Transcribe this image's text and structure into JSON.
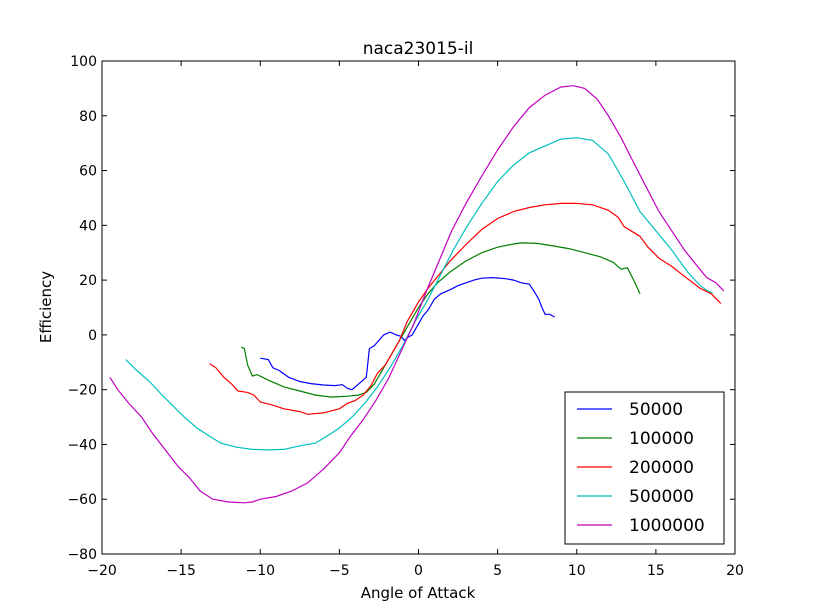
{
  "chart_data": {
    "type": "line",
    "title": "naca23015-il",
    "xlabel": "Angle of Attack",
    "ylabel": "Efficiency",
    "xlim": [
      -20,
      20
    ],
    "ylim": [
      -80,
      100
    ],
    "xticks": [
      -20,
      -15,
      -10,
      -5,
      0,
      5,
      10,
      15,
      20
    ],
    "yticks": [
      -80,
      -60,
      -40,
      -20,
      0,
      20,
      40,
      60,
      80,
      100
    ],
    "xtick_labels": [
      "−20",
      "−15",
      "−10",
      "−5",
      "0",
      "5",
      "10",
      "15",
      "20"
    ],
    "ytick_labels": [
      "−80",
      "−60",
      "−40",
      "−20",
      "0",
      "20",
      "40",
      "60",
      "80",
      "100"
    ],
    "grid": false,
    "legend_position": "lower-right",
    "series": [
      {
        "name": "50000",
        "color": "#0000ff",
        "points": [
          [
            -10,
            -8.5
          ],
          [
            -9.5,
            -9
          ],
          [
            -9.2,
            -12
          ],
          [
            -8.8,
            -13
          ],
          [
            -8.2,
            -15.5
          ],
          [
            -7.5,
            -17
          ],
          [
            -6.8,
            -17.8
          ],
          [
            -6,
            -18.3
          ],
          [
            -5.3,
            -18.5
          ],
          [
            -4.8,
            -18.2
          ],
          [
            -4.5,
            -19.5
          ],
          [
            -4.2,
            -20
          ],
          [
            -3.8,
            -18
          ],
          [
            -3.5,
            -16.5
          ],
          [
            -3.3,
            -15.5
          ],
          [
            -3.1,
            -5
          ],
          [
            -2.8,
            -4
          ],
          [
            -2.5,
            -2
          ],
          [
            -2.2,
            0
          ],
          [
            -1.8,
            1
          ],
          [
            -1.4,
            0
          ],
          [
            -1.1,
            -0.5
          ],
          [
            -0.9,
            -2
          ],
          [
            -0.7,
            -1
          ],
          [
            -0.4,
            0
          ],
          [
            -0.2,
            2
          ],
          [
            0,
            4
          ],
          [
            0.3,
            7
          ],
          [
            0.6,
            9
          ],
          [
            1,
            13
          ],
          [
            1.4,
            15
          ],
          [
            2,
            16.5
          ],
          [
            2.5,
            18
          ],
          [
            3,
            19
          ],
          [
            3.5,
            20
          ],
          [
            4,
            20.7
          ],
          [
            4.7,
            20.9
          ],
          [
            5.5,
            20.5
          ],
          [
            6,
            20
          ],
          [
            6.5,
            19
          ],
          [
            7,
            18.5
          ],
          [
            7.3,
            16
          ],
          [
            7.6,
            13
          ],
          [
            7.8,
            10
          ],
          [
            8,
            7.5
          ],
          [
            8.3,
            7.5
          ],
          [
            8.6,
            6.5
          ]
        ]
      },
      {
        "name": "100000",
        "color": "#008000",
        "points": [
          [
            -11.2,
            -4.5
          ],
          [
            -11,
            -5
          ],
          [
            -10.8,
            -11
          ],
          [
            -10.5,
            -15
          ],
          [
            -10.2,
            -14.5
          ],
          [
            -9.5,
            -16.5
          ],
          [
            -8.5,
            -19
          ],
          [
            -7.5,
            -20.5
          ],
          [
            -6.5,
            -22
          ],
          [
            -5.5,
            -22.7
          ],
          [
            -4.5,
            -22.4
          ],
          [
            -3.8,
            -22
          ],
          [
            -3.3,
            -21
          ],
          [
            -2.8,
            -18
          ],
          [
            -2.3,
            -13
          ],
          [
            -1.8,
            -8
          ],
          [
            -1.2,
            -2
          ],
          [
            -0.6,
            4
          ],
          [
            0,
            10
          ],
          [
            0.6,
            15
          ],
          [
            1.2,
            19
          ],
          [
            2,
            23
          ],
          [
            3,
            27
          ],
          [
            4,
            30
          ],
          [
            5,
            32
          ],
          [
            6,
            33.2
          ],
          [
            6.5,
            33.6
          ],
          [
            7.5,
            33.4
          ],
          [
            8.5,
            32.5
          ],
          [
            9.5,
            31.5
          ],
          [
            10.5,
            30
          ],
          [
            11.5,
            28.5
          ],
          [
            12.3,
            26.5
          ],
          [
            12.8,
            24
          ],
          [
            13.2,
            24.5
          ],
          [
            13.6,
            20
          ],
          [
            14,
            15
          ]
        ]
      },
      {
        "name": "200000",
        "color": "#ff0000",
        "points": [
          [
            -13.2,
            -10.5
          ],
          [
            -12.8,
            -12
          ],
          [
            -12.3,
            -15.5
          ],
          [
            -11.8,
            -18
          ],
          [
            -11.4,
            -20.5
          ],
          [
            -10.8,
            -21
          ],
          [
            -10.4,
            -22
          ],
          [
            -10,
            -24.5
          ],
          [
            -9.3,
            -25.5
          ],
          [
            -8.5,
            -27
          ],
          [
            -7.5,
            -28
          ],
          [
            -7,
            -29
          ],
          [
            -6,
            -28.5
          ],
          [
            -5,
            -27
          ],
          [
            -4.5,
            -25
          ],
          [
            -4,
            -24
          ],
          [
            -3.5,
            -22
          ],
          [
            -3,
            -18.5
          ],
          [
            -2.6,
            -14
          ],
          [
            -2.1,
            -11
          ],
          [
            -1.6,
            -6
          ],
          [
            -1.2,
            -2
          ],
          [
            -0.7,
            5
          ],
          [
            0,
            12
          ],
          [
            0.6,
            17
          ],
          [
            1.3,
            22
          ],
          [
            2,
            27
          ],
          [
            3,
            33
          ],
          [
            4,
            38.5
          ],
          [
            5,
            42.5
          ],
          [
            6,
            45
          ],
          [
            7,
            46.5
          ],
          [
            8,
            47.5
          ],
          [
            9,
            48
          ],
          [
            10,
            48
          ],
          [
            11,
            47.5
          ],
          [
            12,
            45.5
          ],
          [
            12.6,
            43
          ],
          [
            13,
            39.5
          ],
          [
            14,
            36
          ],
          [
            14.5,
            32
          ],
          [
            15.2,
            28
          ],
          [
            16,
            25
          ],
          [
            17,
            20.5
          ],
          [
            17.8,
            17
          ],
          [
            18.5,
            15
          ],
          [
            19.1,
            11.5
          ]
        ]
      },
      {
        "name": "500000",
        "color": "#00bfbf",
        "points": [
          [
            -18.5,
            -9
          ],
          [
            -17.8,
            -13
          ],
          [
            -17,
            -17
          ],
          [
            -16.2,
            -22
          ],
          [
            -15.5,
            -26
          ],
          [
            -14.8,
            -30
          ],
          [
            -14,
            -34
          ],
          [
            -13.2,
            -37
          ],
          [
            -12.5,
            -39.5
          ],
          [
            -11.5,
            -41
          ],
          [
            -10.5,
            -41.8
          ],
          [
            -9.5,
            -42
          ],
          [
            -8.5,
            -41.8
          ],
          [
            -7.5,
            -40.5
          ],
          [
            -6.5,
            -39.5
          ],
          [
            -5.8,
            -37
          ],
          [
            -5,
            -34
          ],
          [
            -4.2,
            -30
          ],
          [
            -3.4,
            -25
          ],
          [
            -2.6,
            -19
          ],
          [
            -1.8,
            -12
          ],
          [
            -1,
            -4
          ],
          [
            -0.2,
            5
          ],
          [
            0.6,
            13
          ],
          [
            1.4,
            22
          ],
          [
            2.2,
            31
          ],
          [
            3,
            39
          ],
          [
            4,
            48
          ],
          [
            5,
            56
          ],
          [
            6,
            62
          ],
          [
            7,
            66.5
          ],
          [
            8,
            69
          ],
          [
            9,
            71.5
          ],
          [
            10,
            72
          ],
          [
            11,
            71
          ],
          [
            12,
            66
          ],
          [
            13,
            56
          ],
          [
            14,
            45
          ],
          [
            15,
            38
          ],
          [
            16,
            31
          ],
          [
            17,
            23
          ],
          [
            17.8,
            18
          ],
          [
            18.3,
            16
          ],
          [
            18.6,
            15.3
          ]
        ]
      },
      {
        "name": "1000000",
        "color": "#bf00bf",
        "points": [
          [
            -19.5,
            -15.5
          ],
          [
            -19,
            -20
          ],
          [
            -18.3,
            -25
          ],
          [
            -17.5,
            -30
          ],
          [
            -16.8,
            -36
          ],
          [
            -16,
            -42
          ],
          [
            -15.2,
            -48
          ],
          [
            -14.5,
            -52
          ],
          [
            -13.8,
            -57
          ],
          [
            -13,
            -60
          ],
          [
            -12,
            -61
          ],
          [
            -11,
            -61.3
          ],
          [
            -10.5,
            -61
          ],
          [
            -10,
            -60
          ],
          [
            -9,
            -59
          ],
          [
            -8,
            -57
          ],
          [
            -7,
            -54
          ],
          [
            -6,
            -49
          ],
          [
            -5,
            -43
          ],
          [
            -4.3,
            -37
          ],
          [
            -3.5,
            -31
          ],
          [
            -2.7,
            -24
          ],
          [
            -1.9,
            -16
          ],
          [
            -1.1,
            -6
          ],
          [
            -0.3,
            4
          ],
          [
            0.5,
            16
          ],
          [
            1.3,
            27
          ],
          [
            2.1,
            38
          ],
          [
            3,
            48
          ],
          [
            4,
            58
          ],
          [
            5,
            67.5
          ],
          [
            6,
            76
          ],
          [
            7,
            83
          ],
          [
            8,
            87.5
          ],
          [
            9,
            90.5
          ],
          [
            9.8,
            91
          ],
          [
            10.5,
            90
          ],
          [
            11.3,
            86
          ],
          [
            12,
            80
          ],
          [
            12.8,
            72
          ],
          [
            13.5,
            64
          ],
          [
            14.3,
            55
          ],
          [
            15.2,
            45
          ],
          [
            16,
            38
          ],
          [
            16.8,
            31
          ],
          [
            17.5,
            26
          ],
          [
            18.2,
            21
          ],
          [
            18.8,
            19
          ],
          [
            19.3,
            16
          ]
        ]
      }
    ]
  }
}
